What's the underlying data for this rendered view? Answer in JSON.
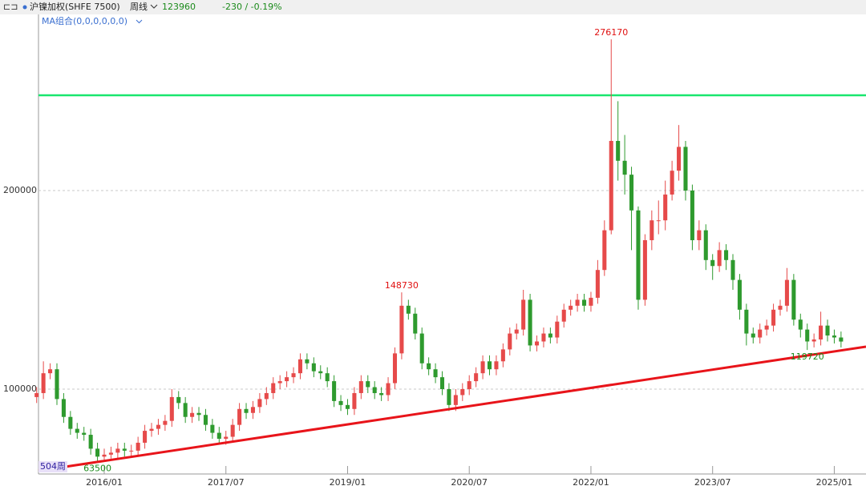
{
  "header": {
    "symbol": "沪镍加权(SHFE 7500)",
    "period": "周线",
    "change": "-230 / -0.19%",
    "indicator": "MA组合(0,0,0,0,0,0)",
    "bars": "504周"
  },
  "chart_data": {
    "type": "candlestick",
    "up_color": "#e64a4a",
    "down_color": "#2e9a2e",
    "categories": [
      null,
      null,
      null,
      null,
      null,
      null,
      null,
      null,
      null,
      null,
      null,
      null,
      null,
      null,
      null,
      null,
      null,
      null,
      null,
      null,
      null,
      null,
      null,
      null,
      null,
      null,
      null,
      null,
      null,
      null,
      null,
      null,
      null,
      null,
      null,
      null,
      null,
      null,
      null,
      null,
      null,
      null,
      null,
      null,
      null,
      null,
      null,
      null,
      null,
      null,
      null,
      null,
      null,
      null,
      null,
      null,
      null,
      null,
      null,
      null,
      null,
      null,
      null,
      null,
      null,
      null,
      null,
      null,
      null,
      null,
      null,
      null,
      null,
      null,
      null,
      null,
      null,
      null,
      null,
      null,
      null,
      null,
      null,
      null,
      null,
      null,
      null,
      null,
      null,
      null,
      null,
      null,
      null,
      null,
      null,
      null,
      null,
      null,
      null,
      null,
      null,
      null,
      null,
      null,
      null,
      null,
      null,
      null,
      null,
      null,
      null,
      null,
      null,
      null,
      null,
      null,
      null,
      null,
      null,
      null
    ],
    "open": [
      96000,
      98000,
      108000,
      110000,
      95000,
      86000,
      80000,
      78000,
      77000,
      70000,
      66000,
      67000,
      68000,
      70000,
      69000,
      69000,
      73000,
      79000,
      80000,
      82000,
      84000,
      96000,
      93000,
      86000,
      88000,
      87000,
      82000,
      78000,
      75000,
      76000,
      82000,
      90000,
      88000,
      91000,
      95000,
      98000,
      103000,
      104000,
      106000,
      108000,
      115000,
      113000,
      109000,
      108000,
      104000,
      94000,
      92000,
      90000,
      98000,
      104000,
      101000,
      98000,
      97000,
      103000,
      118000,
      142000,
      138000,
      128000,
      113000,
      110000,
      106000,
      100000,
      92000,
      97000,
      100000,
      104000,
      108000,
      114000,
      110000,
      114000,
      120000,
      128000,
      130000,
      145000,
      122000,
      124000,
      128000,
      126000,
      134000,
      140000,
      142000,
      145000,
      142000,
      146000,
      160000,
      180000,
      225000,
      215000,
      208000,
      190000,
      145000,
      175000,
      185000,
      185000,
      198000,
      210000,
      222000,
      200000,
      175000,
      180000,
      165000,
      162000,
      170000,
      165000,
      155000,
      140000,
      128000,
      126000,
      130000,
      132000,
      140000,
      142000,
      155000,
      135000,
      130000,
      124000,
      125000,
      132000,
      127000,
      126000
    ],
    "high": [
      101000,
      114000,
      113000,
      113000,
      98000,
      89000,
      83000,
      81000,
      80000,
      73000,
      70000,
      71000,
      73000,
      73000,
      72000,
      76000,
      82000,
      83000,
      85000,
      87000,
      100000,
      99000,
      96000,
      91000,
      91000,
      90000,
      85000,
      81000,
      79000,
      85000,
      93000,
      93000,
      94000,
      98000,
      101000,
      106000,
      107000,
      109000,
      111000,
      118000,
      118000,
      116000,
      112000,
      111000,
      107000,
      97000,
      95000,
      101000,
      107000,
      107000,
      104000,
      101000,
      106000,
      121000,
      148730,
      145000,
      141000,
      131000,
      116000,
      113000,
      109000,
      103000,
      100000,
      103000,
      107000,
      111000,
      117000,
      117000,
      117000,
      123000,
      131000,
      133000,
      150000,
      148000,
      127000,
      131000,
      131000,
      137000,
      143000,
      145000,
      148000,
      148000,
      149000,
      165000,
      185000,
      276170,
      245000,
      228000,
      212000,
      192000,
      178000,
      190000,
      195000,
      205000,
      215000,
      233000,
      225000,
      203000,
      185000,
      183000,
      168000,
      174000,
      173000,
      168000,
      158000,
      143000,
      131000,
      133000,
      135000,
      143000,
      145000,
      161000,
      158000,
      138000,
      133000,
      128000,
      139000,
      135000,
      130000,
      129000
    ],
    "low": [
      93000,
      95000,
      105000,
      92000,
      83000,
      77000,
      75000,
      74000,
      67000,
      63500,
      64000,
      65000,
      65000,
      66000,
      66000,
      66000,
      70000,
      76000,
      77000,
      79000,
      81000,
      90000,
      83000,
      83000,
      84000,
      79000,
      75000,
      72000,
      72000,
      73000,
      79000,
      85000,
      85000,
      88000,
      92000,
      95000,
      100000,
      101000,
      103000,
      105000,
      110000,
      106000,
      105000,
      101000,
      91000,
      89000,
      87000,
      87000,
      95000,
      98000,
      95000,
      94000,
      94000,
      100000,
      115000,
      135000,
      125000,
      110000,
      107000,
      103000,
      97000,
      89000,
      89000,
      94000,
      97000,
      101000,
      105000,
      107000,
      107000,
      111000,
      117000,
      125000,
      127000,
      119000,
      119000,
      121000,
      123000,
      123000,
      131000,
      137000,
      139000,
      139000,
      139000,
      143000,
      157000,
      178000,
      205000,
      198000,
      170000,
      140000,
      142000,
      170000,
      178000,
      180000,
      195000,
      205000,
      195000,
      170000,
      170000,
      160000,
      155000,
      159000,
      160000,
      150000,
      135000,
      122000,
      123000,
      123000,
      127000,
      129000,
      137000,
      139000,
      132000,
      126000,
      119720,
      121000,
      122000,
      124000,
      123000,
      121000
    ],
    "close": [
      98000,
      108000,
      110000,
      95000,
      86000,
      80000,
      78000,
      77000,
      70000,
      66000,
      67000,
      68000,
      70000,
      69000,
      69000,
      73000,
      79000,
      80000,
      82000,
      84000,
      96000,
      93000,
      86000,
      88000,
      87000,
      82000,
      78000,
      75000,
      76000,
      82000,
      90000,
      88000,
      91000,
      95000,
      98000,
      103000,
      104000,
      106000,
      108000,
      115000,
      113000,
      109000,
      108000,
      104000,
      94000,
      92000,
      90000,
      98000,
      104000,
      101000,
      98000,
      97000,
      103000,
      118000,
      142000,
      138000,
      128000,
      113000,
      110000,
      106000,
      100000,
      92000,
      97000,
      100000,
      104000,
      108000,
      114000,
      110000,
      114000,
      120000,
      128000,
      130000,
      145000,
      122000,
      124000,
      128000,
      126000,
      134000,
      140000,
      142000,
      145000,
      142000,
      146000,
      160000,
      180000,
      225000,
      215000,
      208000,
      190000,
      145000,
      175000,
      185000,
      185000,
      198000,
      210000,
      222000,
      200000,
      175000,
      180000,
      165000,
      162000,
      170000,
      165000,
      155000,
      140000,
      128000,
      126000,
      130000,
      132000,
      140000,
      142000,
      155000,
      135000,
      130000,
      124000,
      125000,
      132000,
      127000,
      126000,
      123960
    ],
    "ylim": [
      57260,
      288710
    ],
    "yticks": [
      100000,
      200000
    ],
    "grid": true,
    "xticks": [
      {
        "value": 10,
        "label": "2016/01"
      },
      {
        "value": 28,
        "label": "2017/07"
      },
      {
        "value": 46,
        "label": "2019/01"
      },
      {
        "value": 64,
        "label": "2020/07"
      },
      {
        "value": 82,
        "label": "2022/01"
      },
      {
        "value": 100,
        "label": "2023/07"
      },
      {
        "value": 118,
        "label": "2025/01"
      }
    ],
    "hline": 248000,
    "hline_color": "#19e66e",
    "trendline": {
      "x": [
        0,
        119
      ],
      "y": [
        58750,
        119500
      ],
      "color": "#e8141a"
    }
  }
}
